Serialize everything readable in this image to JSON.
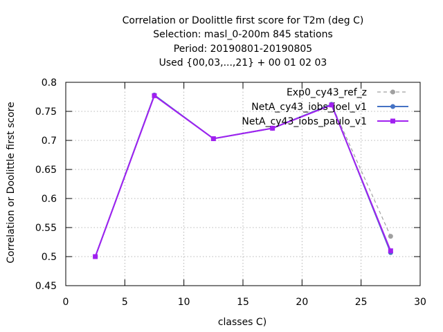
{
  "chart_data": {
    "type": "line",
    "title": [
      "Correlation or Doolittle first score  for T2m (deg C)",
      "Selection: masl_0-200m    845 stations",
      "Period: 20190801-20190805",
      "Used {00,03,...,21} + 00 01 02 03"
    ],
    "xlabel": "classes C)",
    "ylabel": "Correlation or Doolittle first score",
    "xlim": [
      0,
      30
    ],
    "ylim": [
      0.45,
      0.8
    ],
    "x_ticks": [
      0,
      5,
      10,
      15,
      20,
      25,
      30
    ],
    "y_ticks": [
      0.45,
      0.5,
      0.55,
      0.6,
      0.65,
      0.7,
      0.75,
      0.8
    ],
    "x_tick_labels": [
      "0",
      "5",
      "10",
      "15",
      "20",
      "25",
      "30"
    ],
    "y_tick_labels": [
      "0.45",
      "0.5",
      "0.55",
      "0.6",
      "0.65",
      "0.7",
      "0.75",
      "0.8"
    ],
    "grid": true,
    "legend_position": "top-right",
    "x": [
      2.5,
      7.5,
      12.5,
      17.5,
      22.5,
      27.5
    ],
    "series": [
      {
        "name": "Exp0_cy43_ref_z",
        "values": [
          0.5,
          0.778,
          0.703,
          0.721,
          0.762,
          0.535
        ],
        "color": "#a0a0a0",
        "dash": "dashed",
        "marker": "circle"
      },
      {
        "name": "NetA_cy43_iobs_joel_v1",
        "values": [
          0.5,
          0.778,
          0.703,
          0.721,
          0.762,
          0.507
        ],
        "color": "#4472c4",
        "dash": "solid",
        "marker": "circle"
      },
      {
        "name": "NetA_cy43_iobs_paulo_v1",
        "values": [
          0.5,
          0.777,
          0.703,
          0.721,
          0.761,
          0.51
        ],
        "color": "#a020f0",
        "dash": "solid",
        "marker": "square"
      }
    ]
  }
}
